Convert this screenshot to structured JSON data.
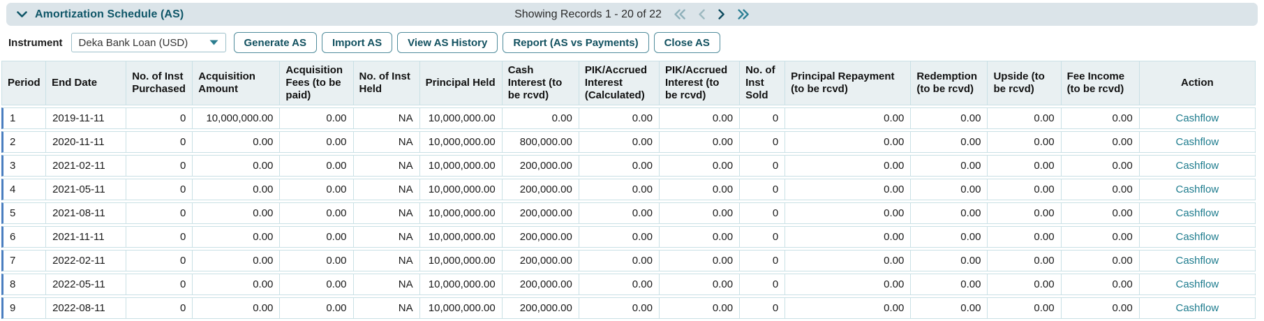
{
  "panel": {
    "title": "Amortization Schedule (AS)",
    "records_text": "Showing Records 1 - 20 of 22",
    "pagination_icons": [
      "double-chevron-left",
      "chevron-left",
      "chevron-right",
      "double-chevron-right"
    ]
  },
  "toolbar": {
    "instrument_label": "Instrument",
    "instrument_value": "Deka Bank Loan (USD)",
    "dropdown_icon": "caret-down",
    "buttons": [
      "Generate AS",
      "Import AS",
      "View AS History",
      "Report (AS vs Payments)",
      "Close AS"
    ]
  },
  "table": {
    "columns": [
      "Period",
      "End Date",
      "No. of Inst Purchased",
      "Acquisition Amount",
      "Acquisition Fees (to be paid)",
      "No. of Inst Held",
      "Principal Held",
      "Cash Interest (to be rcvd)",
      "PIK/Accrued Interest (Calculated)",
      "PIK/Accrued Interest (to be rcvd)",
      "No. of Inst Sold",
      "Principal Repayment (to be rcvd)",
      "Redemption (to be rcvd)",
      "Upside (to be rcvd)",
      "Fee Income (to be rcvd)",
      "Action"
    ],
    "action_label": "Cashflow",
    "rows": [
      [
        "1",
        "2019-11-11",
        "0",
        "10,000,000.00",
        "0.00",
        "NA",
        "10,000,000.00",
        "0.00",
        "0.00",
        "0.00",
        "0",
        "0.00",
        "0.00",
        "0.00",
        "0.00"
      ],
      [
        "2",
        "2020-11-11",
        "0",
        "0.00",
        "0.00",
        "NA",
        "10,000,000.00",
        "800,000.00",
        "0.00",
        "0.00",
        "0",
        "0.00",
        "0.00",
        "0.00",
        "0.00"
      ],
      [
        "3",
        "2021-02-11",
        "0",
        "0.00",
        "0.00",
        "NA",
        "10,000,000.00",
        "200,000.00",
        "0.00",
        "0.00",
        "0",
        "0.00",
        "0.00",
        "0.00",
        "0.00"
      ],
      [
        "4",
        "2021-05-11",
        "0",
        "0.00",
        "0.00",
        "NA",
        "10,000,000.00",
        "200,000.00",
        "0.00",
        "0.00",
        "0",
        "0.00",
        "0.00",
        "0.00",
        "0.00"
      ],
      [
        "5",
        "2021-08-11",
        "0",
        "0.00",
        "0.00",
        "NA",
        "10,000,000.00",
        "200,000.00",
        "0.00",
        "0.00",
        "0",
        "0.00",
        "0.00",
        "0.00",
        "0.00"
      ],
      [
        "6",
        "2021-11-11",
        "0",
        "0.00",
        "0.00",
        "NA",
        "10,000,000.00",
        "200,000.00",
        "0.00",
        "0.00",
        "0",
        "0.00",
        "0.00",
        "0.00",
        "0.00"
      ],
      [
        "7",
        "2022-02-11",
        "0",
        "0.00",
        "0.00",
        "NA",
        "10,000,000.00",
        "200,000.00",
        "0.00",
        "0.00",
        "0",
        "0.00",
        "0.00",
        "0.00",
        "0.00"
      ],
      [
        "8",
        "2022-05-11",
        "0",
        "0.00",
        "0.00",
        "NA",
        "10,000,000.00",
        "200,000.00",
        "0.00",
        "0.00",
        "0",
        "0.00",
        "0.00",
        "0.00",
        "0.00"
      ],
      [
        "9",
        "2022-08-11",
        "0",
        "0.00",
        "0.00",
        "NA",
        "10,000,000.00",
        "200,000.00",
        "0.00",
        "0.00",
        "0",
        "0.00",
        "0.00",
        "0.00",
        "0.00"
      ]
    ]
  },
  "colors": {
    "accent_teal": "#1e7c8e",
    "title_teal": "#0f5668",
    "button_border": "#4f8b9b",
    "header_bar_bg": "#dbe4e9",
    "table_header_bg": "#e9f0f2",
    "cell_border": "#c9e0e5",
    "row_left_accent": "#4a7ec0",
    "pager_active": "#0d4a5e",
    "pager_disabled": "#8fb0ba",
    "pager_last": "#2e8095"
  }
}
